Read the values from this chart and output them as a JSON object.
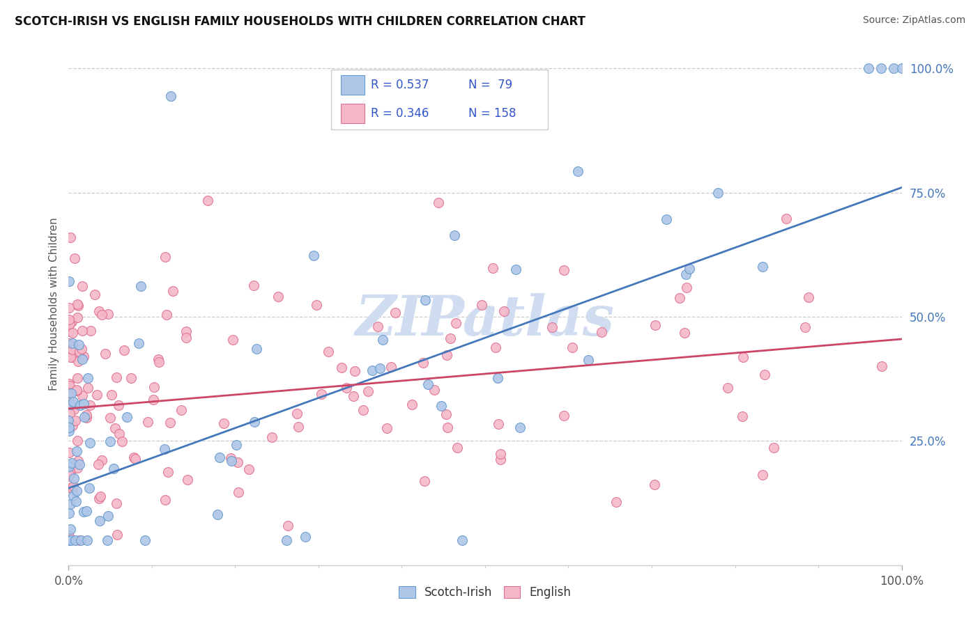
{
  "title": "SCOTCH-IRISH VS ENGLISH FAMILY HOUSEHOLDS WITH CHILDREN CORRELATION CHART",
  "source": "Source: ZipAtlas.com",
  "ylabel": "Family Households with Children",
  "xlim": [
    0.0,
    1.0
  ],
  "ylim": [
    0.0,
    1.05
  ],
  "x_tick_labels": [
    "0.0%",
    "100.0%"
  ],
  "y_tick_labels": [
    "25.0%",
    "50.0%",
    "75.0%",
    "100.0%"
  ],
  "y_tick_positions": [
    0.25,
    0.5,
    0.75,
    1.0
  ],
  "scotch_irish_fill": "#aec6e8",
  "scotch_irish_edge": "#6699cc",
  "english_fill": "#f4b8c8",
  "english_edge": "#e07090",
  "si_line_color": "#4477bb",
  "en_line_color": "#cc4466",
  "watermark_color": "#d0ddf0",
  "legend_R_scotch": "0.537",
  "legend_N_scotch": "79",
  "legend_R_english": "0.346",
  "legend_N_english": "158",
  "legend_text_color": "#3355cc",
  "legend_label_color": "#222222",
  "si_line_x0": 0.0,
  "si_line_x1": 1.0,
  "si_line_y0": 0.155,
  "si_line_y1": 0.76,
  "en_line_x0": 0.0,
  "en_line_x1": 1.0,
  "en_line_y0": 0.315,
  "en_line_y1": 0.455
}
